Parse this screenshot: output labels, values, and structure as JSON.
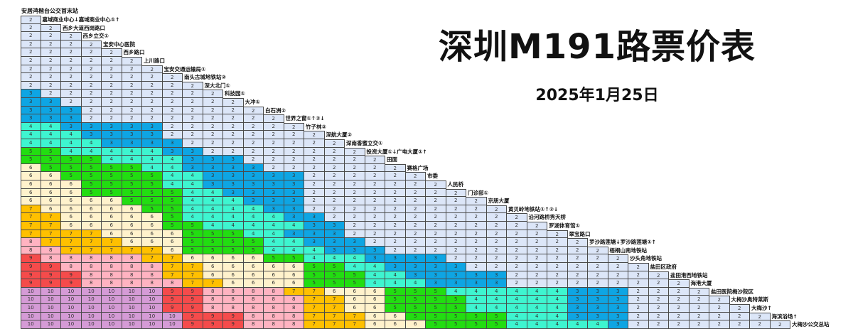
{
  "header": {
    "title": "深圳M191路票价表",
    "date": "2025年1月25日"
  },
  "fare_colors": {
    "2": "#dce6f8",
    "3": "#0ea5e3",
    "4": "#3ef5d0",
    "5": "#22dd11",
    "6": "#fff2cc",
    "7": "#ffc000",
    "8": "#ffb3c1",
    "9": "#f54b4b",
    "10": "#d59bd6"
  },
  "stations": [
    "安居鸿楷台公交首末站",
    "嘉域商业中心↓嘉域商业中心①↑",
    "西乡大道西岗路口",
    "西乡立交①",
    "宝安中心医院",
    "西乡路口",
    "上川路口",
    "宝安交通运输局①",
    "南头古城地铁站②",
    "深大北门①",
    "科技园①",
    "大冲①",
    "白石洲②",
    "世界之窗①↑②↓",
    "竹子林②",
    "深航大厦②",
    "深南香蜜立交①",
    "投资大厦①↓广电大厦①↑",
    "田面",
    "赛格广场",
    "市委",
    "人民桥",
    "门诊部①",
    "京朋大厦",
    "黄贝岭地铁站①↑②↓",
    "沿河路桥秀天桥",
    "罗湖体育馆①",
    "翠宝路口",
    "罗沙路莲塘↓罗沙路莲塘①↑",
    "梧桐山南地铁站",
    "沙头角地铁站",
    "盐田区政府",
    "盐田港西地铁站",
    "海港大厦",
    "盐田医院梅沙院区",
    "大梅沙奥特莱斯",
    "大梅沙↑",
    "海滨浴场↑",
    "大梅沙公交总站"
  ],
  "fare_matrix": [
    [
      2
    ],
    [
      2,
      2
    ],
    [
      2,
      2,
      2
    ],
    [
      2,
      2,
      2,
      2
    ],
    [
      2,
      2,
      2,
      2,
      2
    ],
    [
      2,
      2,
      2,
      2,
      2,
      2
    ],
    [
      2,
      2,
      2,
      2,
      2,
      2,
      2
    ],
    [
      2,
      2,
      2,
      2,
      2,
      2,
      2,
      2
    ],
    [
      2,
      2,
      2,
      2,
      2,
      2,
      2,
      2,
      2
    ],
    [
      3,
      2,
      2,
      2,
      2,
      2,
      2,
      2,
      2,
      2
    ],
    [
      3,
      3,
      2,
      2,
      2,
      2,
      2,
      2,
      2,
      2,
      2
    ],
    [
      3,
      3,
      3,
      2,
      2,
      2,
      2,
      2,
      2,
      2,
      2,
      2
    ],
    [
      3,
      3,
      3,
      2,
      2,
      2,
      2,
      2,
      2,
      2,
      2,
      2,
      2
    ],
    [
      4,
      4,
      3,
      3,
      3,
      3,
      3,
      2,
      2,
      2,
      2,
      2,
      2,
      2
    ],
    [
      4,
      4,
      4,
      3,
      3,
      3,
      3,
      2,
      2,
      2,
      2,
      2,
      2,
      2,
      2
    ],
    [
      4,
      4,
      4,
      4,
      3,
      3,
      3,
      3,
      2,
      2,
      2,
      2,
      2,
      2,
      2,
      2
    ],
    [
      5,
      5,
      4,
      4,
      4,
      4,
      4,
      3,
      3,
      2,
      2,
      2,
      2,
      2,
      2,
      2,
      2
    ],
    [
      5,
      5,
      5,
      5,
      4,
      4,
      4,
      4,
      3,
      3,
      3,
      2,
      2,
      2,
      2,
      2,
      2,
      2
    ],
    [
      6,
      5,
      5,
      5,
      5,
      5,
      4,
      4,
      3,
      3,
      3,
      3,
      2,
      2,
      2,
      2,
      2,
      2,
      2
    ],
    [
      6,
      6,
      5,
      5,
      5,
      5,
      5,
      4,
      4,
      3,
      3,
      3,
      3,
      3,
      2,
      2,
      2,
      2,
      2,
      2
    ],
    [
      6,
      6,
      6,
      5,
      5,
      5,
      5,
      4,
      4,
      3,
      3,
      3,
      3,
      3,
      2,
      2,
      2,
      2,
      2,
      2,
      2
    ],
    [
      6,
      6,
      6,
      5,
      5,
      5,
      5,
      5,
      4,
      4,
      3,
      3,
      3,
      3,
      2,
      2,
      2,
      2,
      2,
      2,
      2,
      2
    ],
    [
      6,
      6,
      6,
      6,
      6,
      5,
      5,
      5,
      4,
      4,
      4,
      3,
      3,
      3,
      2,
      2,
      2,
      2,
      2,
      2,
      2,
      2,
      2
    ],
    [
      7,
      6,
      6,
      6,
      6,
      6,
      5,
      5,
      4,
      4,
      4,
      4,
      3,
      3,
      2,
      2,
      2,
      2,
      2,
      2,
      2,
      2,
      2,
      2
    ],
    [
      7,
      7,
      6,
      6,
      6,
      6,
      6,
      5,
      4,
      4,
      4,
      4,
      4,
      3,
      3,
      2,
      2,
      2,
      2,
      2,
      2,
      2,
      2,
      2,
      2
    ],
    [
      7,
      7,
      6,
      6,
      6,
      6,
      6,
      5,
      5,
      4,
      4,
      4,
      4,
      4,
      3,
      3,
      2,
      2,
      2,
      2,
      2,
      2,
      2,
      2,
      2,
      2
    ],
    [
      7,
      7,
      7,
      7,
      6,
      6,
      6,
      6,
      5,
      5,
      5,
      4,
      4,
      3,
      3,
      3,
      2,
      2,
      2,
      2,
      2,
      2,
      2,
      2,
      2,
      2,
      2
    ],
    [
      8,
      7,
      7,
      7,
      7,
      6,
      6,
      6,
      5,
      5,
      5,
      5,
      4,
      4,
      3,
      3,
      3,
      2,
      2,
      2,
      2,
      2,
      2,
      2,
      2,
      2,
      2,
      2
    ],
    [
      8,
      8,
      7,
      7,
      7,
      7,
      7,
      6,
      5,
      5,
      5,
      5,
      4,
      4,
      4,
      3,
      3,
      3,
      2,
      2,
      2,
      2,
      2,
      2,
      2,
      2,
      2,
      2,
      2
    ],
    [
      9,
      8,
      8,
      8,
      8,
      8,
      7,
      7,
      6,
      6,
      6,
      6,
      5,
      5,
      4,
      4,
      4,
      3,
      3,
      3,
      3,
      2,
      2,
      2,
      2,
      2,
      2,
      2,
      2,
      2
    ],
    [
      9,
      9,
      8,
      8,
      8,
      8,
      8,
      7,
      7,
      6,
      6,
      6,
      6,
      6,
      5,
      5,
      4,
      4,
      3,
      3,
      3,
      3,
      2,
      2,
      2,
      2,
      2,
      2,
      2,
      2,
      2
    ],
    [
      9,
      9,
      9,
      8,
      8,
      8,
      8,
      7,
      7,
      6,
      6,
      6,
      6,
      6,
      5,
      5,
      5,
      4,
      4,
      3,
      3,
      3,
      3,
      3,
      2,
      2,
      2,
      2,
      2,
      2,
      2,
      2
    ],
    [
      9,
      9,
      9,
      8,
      8,
      8,
      8,
      8,
      7,
      7,
      6,
      6,
      6,
      6,
      5,
      5,
      5,
      4,
      4,
      4,
      3,
      3,
      3,
      3,
      2,
      2,
      2,
      2,
      2,
      2,
      2,
      2,
      2
    ],
    [
      10,
      10,
      10,
      10,
      10,
      10,
      10,
      9,
      9,
      8,
      8,
      8,
      8,
      7,
      7,
      6,
      6,
      6,
      5,
      5,
      5,
      4,
      4,
      4,
      4,
      4,
      4,
      3,
      3,
      3,
      2,
      2,
      2,
      2
    ],
    [
      10,
      10,
      10,
      10,
      10,
      10,
      10,
      9,
      9,
      8,
      8,
      8,
      8,
      8,
      7,
      7,
      6,
      6,
      5,
      5,
      5,
      5,
      4,
      4,
      4,
      4,
      4,
      3,
      3,
      3,
      2,
      2,
      2,
      2,
      2
    ],
    [
      10,
      10,
      10,
      10,
      10,
      10,
      10,
      9,
      9,
      8,
      8,
      8,
      8,
      8,
      7,
      7,
      6,
      6,
      5,
      5,
      5,
      5,
      4,
      4,
      4,
      4,
      4,
      3,
      3,
      3,
      2,
      2,
      2,
      2,
      2,
      2
    ],
    [
      10,
      10,
      10,
      10,
      10,
      10,
      10,
      10,
      9,
      9,
      9,
      8,
      8,
      8,
      7,
      7,
      7,
      6,
      6,
      5,
      5,
      5,
      5,
      5,
      4,
      4,
      4,
      3,
      3,
      3,
      2,
      2,
      2,
      2,
      2,
      2,
      2
    ],
    [
      10,
      10,
      10,
      10,
      10,
      10,
      10,
      10,
      9,
      9,
      9,
      8,
      8,
      8,
      7,
      7,
      7,
      6,
      6,
      6,
      5,
      5,
      5,
      5,
      4,
      4,
      4,
      4,
      4,
      3,
      2,
      2,
      2,
      2,
      2,
      2,
      2,
      2
    ]
  ]
}
